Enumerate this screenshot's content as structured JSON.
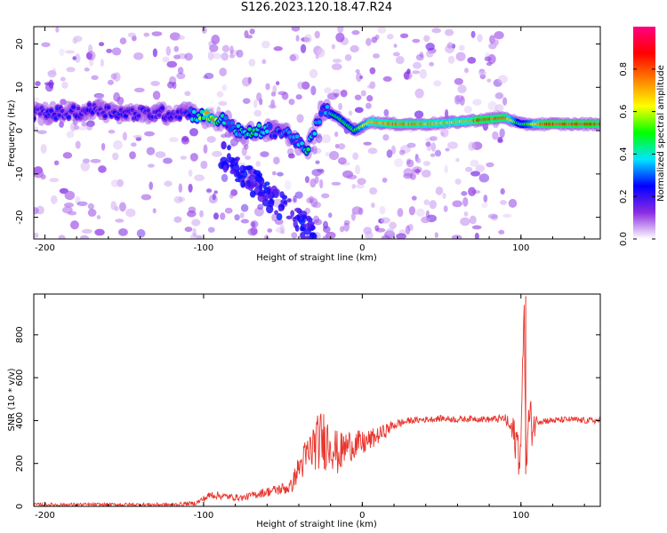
{
  "title": "S126.2023.120.18.47.R24",
  "colors": {
    "snr_line": "#e8362e",
    "background": "#ffffff"
  },
  "chart_data": [
    {
      "type": "heatmap",
      "xlabel": "Height of straight line (km)",
      "ylabel": "Frequency (Hz)",
      "xlim": [
        -207,
        150
      ],
      "ylim": [
        -25,
        24
      ],
      "xticks": [
        -200,
        -100,
        0,
        100
      ],
      "yticks": [
        -20,
        -10,
        0,
        10,
        20
      ],
      "colorbar": {
        "label": "Normalized spectral amplitude",
        "range": [
          0,
          1
        ],
        "ticks": [
          0.0,
          0.2,
          0.4,
          0.6,
          0.8
        ],
        "tick_labels": [
          "0.0",
          "0.2",
          "0.4",
          "0.6",
          "0.8"
        ],
        "colormap": [
          "#ffffff",
          "#8a2be2",
          "#0000ff",
          "#00e5ff",
          "#00ff00",
          "#ffff00",
          "#ff8000",
          "#ff0000",
          "#ff0080"
        ]
      },
      "ridge": [
        {
          "x": -205,
          "f": 4,
          "a": 0.25
        },
        {
          "x": -185,
          "f": 4,
          "a": 0.25
        },
        {
          "x": -170,
          "f": 5,
          "a": 0.25
        },
        {
          "x": -150,
          "f": 4,
          "a": 0.25
        },
        {
          "x": -130,
          "f": 4,
          "a": 0.25
        },
        {
          "x": -110,
          "f": 4,
          "a": 0.25
        },
        {
          "x": -95,
          "f": 3,
          "a": 0.8
        },
        {
          "x": -85,
          "f": 2,
          "a": 0.3
        },
        {
          "x": -75,
          "f": -1,
          "a": 0.5
        },
        {
          "x": -65,
          "f": 0,
          "a": 0.45
        },
        {
          "x": -55,
          "f": 0,
          "a": 0.3
        },
        {
          "x": -45,
          "f": -1,
          "a": 0.35
        },
        {
          "x": -35,
          "f": -5,
          "a": 0.45
        },
        {
          "x": -25,
          "f": 5,
          "a": 0.35
        },
        {
          "x": -15,
          "f": 3,
          "a": 0.5
        },
        {
          "x": -5,
          "f": 0,
          "a": 0.5
        },
        {
          "x": 5,
          "f": 2,
          "a": 0.7
        },
        {
          "x": 20,
          "f": 1.5,
          "a": 0.8
        },
        {
          "x": 40,
          "f": 1.5,
          "a": 0.75
        },
        {
          "x": 60,
          "f": 2,
          "a": 0.7
        },
        {
          "x": 75,
          "f": 2.5,
          "a": 0.85
        },
        {
          "x": 90,
          "f": 3,
          "a": 0.8
        },
        {
          "x": 100,
          "f": 1.5,
          "a": 0.4
        },
        {
          "x": 115,
          "f": 1.5,
          "a": 0.85
        },
        {
          "x": 135,
          "f": 1.5,
          "a": 0.85
        },
        {
          "x": 150,
          "f": 1.5,
          "a": 0.85
        }
      ]
    },
    {
      "type": "line",
      "xlabel": "Height of straight line (km)",
      "ylabel": "SNR (10 * v/v)",
      "xlim": [
        -207,
        150
      ],
      "ylim": [
        0,
        990
      ],
      "xticks": [
        -200,
        -100,
        0,
        100
      ],
      "yticks": [
        0,
        200,
        400,
        600,
        800
      ],
      "series": [
        {
          "x": [
            -207,
            -180,
            -150,
            -120,
            -105,
            -95,
            -85,
            -75,
            -65,
            -55,
            -45,
            -40,
            -35,
            -30,
            -25,
            -20,
            -15,
            -10,
            -5,
            0,
            10,
            20,
            30,
            40,
            50,
            60,
            70,
            80,
            90,
            95,
            100,
            102,
            103,
            105,
            108,
            110,
            120,
            130,
            140,
            150
          ],
          "y": [
            8,
            8,
            8,
            8,
            15,
            55,
            45,
            40,
            60,
            75,
            90,
            180,
            230,
            290,
            310,
            300,
            240,
            280,
            290,
            290,
            330,
            380,
            400,
            405,
            410,
            405,
            410,
            405,
            410,
            340,
            250,
            980,
            200,
            400,
            380,
            400,
            400,
            405,
            400,
            400
          ],
          "spread": [
            8,
            8,
            8,
            8,
            10,
            20,
            15,
            15,
            20,
            25,
            35,
            60,
            100,
            120,
            150,
            120,
            100,
            80,
            70,
            60,
            40,
            25,
            15,
            15,
            15,
            15,
            15,
            15,
            20,
            80,
            150,
            0,
            150,
            120,
            100,
            20,
            15,
            15,
            15,
            15
          ]
        }
      ]
    }
  ]
}
